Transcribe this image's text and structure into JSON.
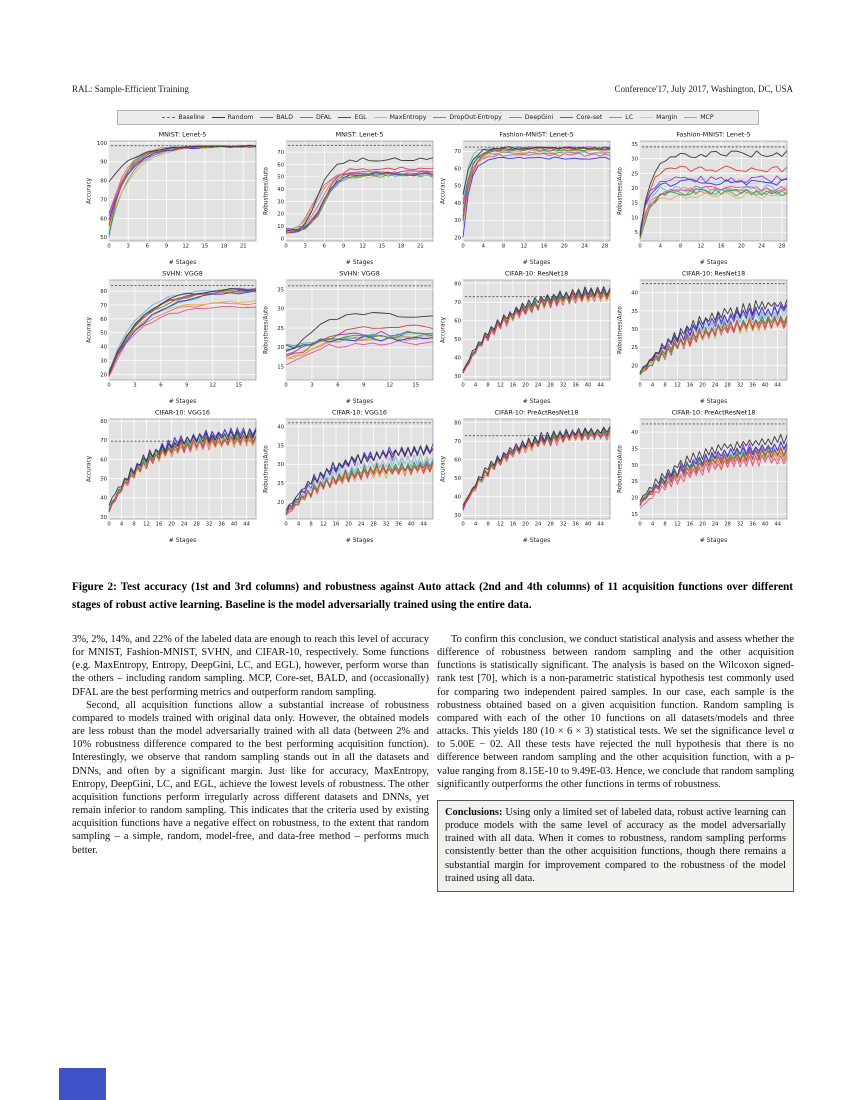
{
  "page": {
    "header_left": "RAL: Sample-Efficient Training",
    "header_right": "Conference'17, July 2017, Washington, DC, USA"
  },
  "figure": {
    "baseline_label": "Baseline",
    "baseline_color": "#666666",
    "caption": "Figure 2: Test accuracy (1st and 3rd columns) and robustness against Auto attack (2nd and 4th columns) of 11 acquisition functions over different stages of robust active learning. Baseline is the model adversarially trained using the entire data."
  },
  "series_names": [
    "Random",
    "BALD",
    "DFAL",
    "EGL",
    "MaxEntropy",
    "DropOut-Entropy",
    "DeepGini",
    "Core-set",
    "LC",
    "Margin",
    "MCP"
  ],
  "series_colors": [
    "#3b3b3b",
    "#d6453a",
    "#3f9b45",
    "#3c3cd9",
    "#e5b25a",
    "#e8538f",
    "#57a0a0",
    "#8a3fd1",
    "#e07b62",
    "#c9c9c9",
    "#67b7e0"
  ],
  "chart_data": [
    {
      "type": "line",
      "curve": "exp",
      "title": "MNIST: Lenet-5",
      "ylabel": "Accuracy",
      "xlabel": "# Stages",
      "xmax": 23,
      "xticks": [
        0,
        3,
        6,
        9,
        12,
        15,
        18,
        21
      ],
      "ymin": 48,
      "ymax": 101,
      "yticks": [
        50,
        60,
        70,
        80,
        90,
        100
      ],
      "baseline": 98.5,
      "tau": 2.8,
      "noise": 0.45,
      "series": [
        [
          79,
          98.4
        ],
        [
          56,
          98.2
        ],
        [
          51,
          98.1
        ],
        [
          59,
          97.9
        ],
        [
          55,
          98.1
        ],
        [
          61,
          98.2
        ],
        [
          52,
          98.2
        ],
        [
          63,
          98.4
        ],
        [
          57,
          98.1
        ],
        [
          53,
          98.2
        ],
        [
          50,
          98.4
        ]
      ]
    },
    {
      "type": "line",
      "curve": "sig",
      "title": "MNIST: Lenet-5",
      "ylabel": "Robustness/Auto",
      "xlabel": "# Stages",
      "xmax": 23,
      "xticks": [
        0,
        3,
        6,
        9,
        12,
        15,
        18,
        21
      ],
      "ymin": -2,
      "ymax": 79,
      "yticks": [
        0,
        10,
        20,
        30,
        40,
        50,
        60,
        70
      ],
      "baseline": 75.5,
      "mid": 5.2,
      "w": 1.15,
      "noise": 1.5,
      "series": [
        [
          4,
          64
        ],
        [
          5,
          56.5
        ],
        [
          6,
          52
        ],
        [
          3,
          52
        ],
        [
          4,
          50.5
        ],
        [
          6,
          53
        ],
        [
          5,
          51
        ],
        [
          7,
          53.5
        ],
        [
          5,
          52
        ],
        [
          5,
          51.5
        ],
        [
          6,
          53
        ]
      ]
    },
    {
      "type": "line",
      "curve": "exp",
      "title": "Fashion-MNIST: Lenet-5",
      "ylabel": "Accuracy",
      "xlabel": "# Stages",
      "xmax": 29,
      "xticks": [
        0,
        4,
        8,
        12,
        16,
        20,
        24,
        28
      ],
      "ymin": 18,
      "ymax": 76,
      "yticks": [
        20,
        30,
        40,
        50,
        60,
        70
      ],
      "baseline": 72.5,
      "tau": 1.4,
      "noise": 0.8,
      "series": [
        [
          45,
          72
        ],
        [
          30,
          71.5
        ],
        [
          33,
          71
        ],
        [
          21,
          66
        ],
        [
          28,
          70
        ],
        [
          35,
          68
        ],
        [
          30,
          69
        ],
        [
          40,
          72
        ],
        [
          32,
          70.5
        ],
        [
          36,
          71.5
        ],
        [
          42,
          72
        ]
      ]
    },
    {
      "type": "line",
      "curve": "exp",
      "title": "Fashion-MNIST: Lenet-5",
      "ylabel": "Robustness/Auto",
      "xlabel": "# Stages",
      "xmax": 29,
      "xticks": [
        0,
        4,
        8,
        12,
        16,
        20,
        24,
        28
      ],
      "ymin": 2,
      "ymax": 36,
      "yticks": [
        5,
        10,
        15,
        20,
        25,
        30,
        35
      ],
      "baseline": 34,
      "tau": 1.5,
      "noise": 1.2,
      "series": [
        [
          3,
          31.5
        ],
        [
          4,
          26.5
        ],
        [
          3,
          18.5
        ],
        [
          5,
          22
        ],
        [
          3,
          17.5
        ],
        [
          4,
          19.5
        ],
        [
          4,
          18.5
        ],
        [
          5,
          23
        ],
        [
          4,
          19
        ],
        [
          5,
          22.5
        ],
        [
          6,
          20
        ]
      ]
    },
    {
      "type": "line",
      "curve": "exp",
      "title": "SVHN: VGG8",
      "ylabel": "Accuracy",
      "xlabel": "# Stages",
      "xmax": 17,
      "xticks": [
        0,
        3,
        6,
        9,
        12,
        15
      ],
      "ymin": 16,
      "ymax": 88,
      "yticks": [
        20,
        30,
        40,
        50,
        60,
        70,
        80
      ],
      "baseline": 84,
      "tau": 3.4,
      "noise": 1.0,
      "series": [
        [
          20,
          82
        ],
        [
          20,
          81
        ],
        [
          22,
          81.5
        ],
        [
          20,
          80.5
        ],
        [
          19,
          72.5
        ],
        [
          19,
          69.5
        ],
        [
          22,
          81
        ],
        [
          21,
          82.5
        ],
        [
          20,
          71.5
        ],
        [
          20,
          81.5
        ],
        [
          23,
          82.5
        ]
      ]
    },
    {
      "type": "line",
      "curve": "sig",
      "title": "SVHN: VGG8",
      "ylabel": "Robustness/Auto",
      "xlabel": "# Stages",
      "xmax": 17,
      "xticks": [
        0,
        3,
        6,
        9,
        12,
        15
      ],
      "ymin": 11.5,
      "ymax": 37.5,
      "yticks": [
        15,
        20,
        25,
        30,
        35
      ],
      "baseline": 36,
      "mid": 2.6,
      "w": 1.6,
      "noise": 0.75,
      "series": [
        [
          17,
          28.5
        ],
        [
          16,
          25.3
        ],
        [
          17,
          23.2
        ],
        [
          19.5,
          22.3
        ],
        [
          15,
          22.6
        ],
        [
          13,
          21
        ],
        [
          19.5,
          23
        ],
        [
          18,
          23.6
        ],
        [
          15,
          22
        ],
        [
          17,
          23.2
        ],
        [
          19,
          22.6
        ]
      ]
    },
    {
      "type": "line",
      "curve": "zig",
      "title": "CIFAR-10: ResNet18",
      "ylabel": "Accuracy",
      "xlabel": "# Stages",
      "xmax": 47,
      "xticks": [
        0,
        4,
        8,
        12,
        16,
        20,
        24,
        28,
        32,
        36,
        40,
        44
      ],
      "ymin": 28,
      "ymax": 82,
      "yticks": [
        30,
        40,
        50,
        60,
        70,
        80
      ],
      "baseline": 73,
      "tau": 13,
      "amp": 2.3,
      "noise": 0.7,
      "series": [
        [
          33,
          78
        ],
        [
          32,
          75.5
        ],
        [
          33,
          76
        ],
        [
          32,
          76.5
        ],
        [
          33,
          74.5
        ],
        [
          32,
          74.5
        ],
        [
          33,
          75
        ],
        [
          32,
          76.5
        ],
        [
          33,
          74.5
        ],
        [
          32,
          75.5
        ],
        [
          33,
          76
        ]
      ]
    },
    {
      "type": "line",
      "curve": "zig",
      "title": "CIFAR-10: ResNet18",
      "ylabel": "Robustness/Auto",
      "xlabel": "# Stages",
      "xmax": 47,
      "xticks": [
        0,
        4,
        8,
        12,
        16,
        20,
        24,
        28,
        32,
        36,
        40,
        44
      ],
      "ymin": 16,
      "ymax": 43.5,
      "yticks": [
        20,
        25,
        30,
        35,
        40
      ],
      "baseline": 42.5,
      "tau": 16,
      "amp": 1.4,
      "noise": 0.5,
      "series": [
        [
          18,
          38
        ],
        [
          18,
          33
        ],
        [
          17,
          33.5
        ],
        [
          18,
          36.5
        ],
        [
          18,
          32.5
        ],
        [
          17,
          32.5
        ],
        [
          18,
          33
        ],
        [
          18,
          36.5
        ],
        [
          18,
          32.5
        ],
        [
          17,
          36
        ],
        [
          18,
          35
        ]
      ]
    },
    {
      "type": "line",
      "curve": "zig",
      "title": "CIFAR-10: VGG16",
      "ylabel": "Accuracy",
      "xlabel": "# Stages",
      "xmax": 47,
      "xticks": [
        0,
        4,
        8,
        12,
        16,
        20,
        24,
        28,
        32,
        36,
        40,
        44
      ],
      "ymin": 29,
      "ymax": 81,
      "yticks": [
        30,
        40,
        50,
        60,
        70,
        80
      ],
      "baseline": 69.5,
      "tau": 11,
      "amp": 2.4,
      "noise": 0.8,
      "series": [
        [
          36,
          73.5
        ],
        [
          33,
          71
        ],
        [
          34,
          72
        ],
        [
          33,
          75
        ],
        [
          34,
          70
        ],
        [
          33,
          70
        ],
        [
          34,
          71
        ],
        [
          33,
          74.5
        ],
        [
          34,
          70
        ],
        [
          33,
          72
        ],
        [
          34,
          73
        ]
      ]
    },
    {
      "type": "line",
      "curve": "zig",
      "title": "CIFAR-10: VGG16",
      "ylabel": "Robustness/Auto",
      "xlabel": "# Stages",
      "xmax": 47,
      "xticks": [
        0,
        4,
        8,
        12,
        16,
        20,
        24,
        28,
        32,
        36,
        40,
        44
      ],
      "ymin": 15.5,
      "ymax": 42,
      "yticks": [
        20,
        25,
        30,
        35,
        40
      ],
      "baseline": 41,
      "tau": 13,
      "amp": 1.2,
      "noise": 0.5,
      "series": [
        [
          18,
          34
        ],
        [
          17,
          29.5
        ],
        [
          17,
          30
        ],
        [
          17,
          34.5
        ],
        [
          17.5,
          29
        ],
        [
          16.5,
          29.5
        ],
        [
          17,
          30
        ],
        [
          17,
          34
        ],
        [
          17,
          29
        ],
        [
          17,
          32
        ],
        [
          17.5,
          31.5
        ]
      ]
    },
    {
      "type": "line",
      "curve": "zig",
      "title": "CIFAR-10: PreActResNet18",
      "ylabel": "Accuracy",
      "xlabel": "# Stages",
      "xmax": 47,
      "xticks": [
        0,
        4,
        8,
        12,
        16,
        20,
        24,
        28,
        32,
        36,
        40,
        44
      ],
      "ymin": 28,
      "ymax": 82,
      "yticks": [
        30,
        40,
        50,
        60,
        70,
        80
      ],
      "baseline": 73,
      "tau": 12,
      "amp": 2.2,
      "noise": 0.8,
      "series": [
        [
          35,
          77
        ],
        [
          34,
          74.5
        ],
        [
          34,
          75.5
        ],
        [
          34,
          76
        ],
        [
          35,
          74.5
        ],
        [
          33,
          74
        ],
        [
          34,
          75
        ],
        [
          34,
          76
        ],
        [
          34,
          74
        ],
        [
          34,
          75.5
        ],
        [
          35,
          76
        ]
      ]
    },
    {
      "type": "line",
      "curve": "zig",
      "title": "CIFAR-10: PreActResNet18",
      "ylabel": "Robustness/Auto",
      "xlabel": "# Stages",
      "xmax": 47,
      "xticks": [
        0,
        4,
        8,
        12,
        16,
        20,
        24,
        28,
        32,
        36,
        40,
        44
      ],
      "ymin": 13.5,
      "ymax": 44,
      "yticks": [
        15,
        20,
        25,
        30,
        35,
        40
      ],
      "baseline": 42.5,
      "tau": 15,
      "amp": 1.4,
      "noise": 0.5,
      "series": [
        [
          19,
          38.5
        ],
        [
          18,
          34.5
        ],
        [
          18,
          35
        ],
        [
          18,
          36.5
        ],
        [
          19,
          34
        ],
        [
          17,
          32.5
        ],
        [
          18,
          34.5
        ],
        [
          18,
          36.5
        ],
        [
          18,
          33
        ],
        [
          18,
          36
        ],
        [
          19,
          35.5
        ]
      ]
    }
  ],
  "body": {
    "left": [
      "3%, 2%, 14%, and 22% of the labeled data are enough to reach this level of accuracy for MNIST, Fashion-MNIST, SVHN, and CIFAR-10, respectively. Some functions (e.g. MaxEntropy, Entropy, DeepGini, LC, and EGL), however, perform worse than the others – including random sampling. MCP, Core-set, BALD, and (occasionally) DFAL are the best performing metrics and outperform random sampling.",
      "Second, all acquisition functions allow a substantial increase of robustness compared to models trained with original data only. However, the obtained models are less robust than the model adversarially trained with all data (between 2% and 10% robustness difference compared to the best performing acquisition function). Interestingly, we observe that random sampling stands out in all the datasets and DNNs, and often by a significant margin. Just like for accuracy, MaxEntropy, Entropy, DeepGini, LC, and EGL, achieve the lowest levels of robustness. The other acquisition functions perform irregularly across different datasets and DNNs, yet remain inferior to random sampling. This indicates that the criteria used by existing acquisition functions have a negative effect on robustness, to the extent that random sampling – a simple, random, model-free, and data-free method – performs much better."
    ],
    "right": [
      "To confirm this conclusion, we conduct statistical analysis and assess whether the difference of robustness between random sampling and the other acquisition functions is statistically significant. The analysis is based on the Wilcoxon signed-rank test [70], which is a non-parametric statistical hypothesis test commonly used for comparing two independent paired samples. In our case, each sample is the robustness obtained based on a given acquisition function. Random sampling is compared with each of the other 10 functions on all datasets/models and three attacks. This yields 180 (10 × 6 × 3) statistical tests. We set the significance level α to 5.00E − 02. All these tests have rejected the null hypothesis that there is no difference between random sampling and the other acquisition function, with a p-value ranging from 8.15E-10 to 9.49E-03. Hence, we conclude that random sampling significantly outperforms the other functions in terms of robustness."
    ],
    "conclusions_label": "Conclusions:",
    "conclusions_text": "Using only a limited set of labeled data, robust active learning can produce models with the same level of accuracy as the model adversarially trained with all data. When it comes to robustness, random sampling performs consistently better than the other acquisition functions, though there remains a substantial margin for improvement compared to the robustness of the model trained using all data."
  },
  "artifact": {
    "color": "#4053c6"
  }
}
